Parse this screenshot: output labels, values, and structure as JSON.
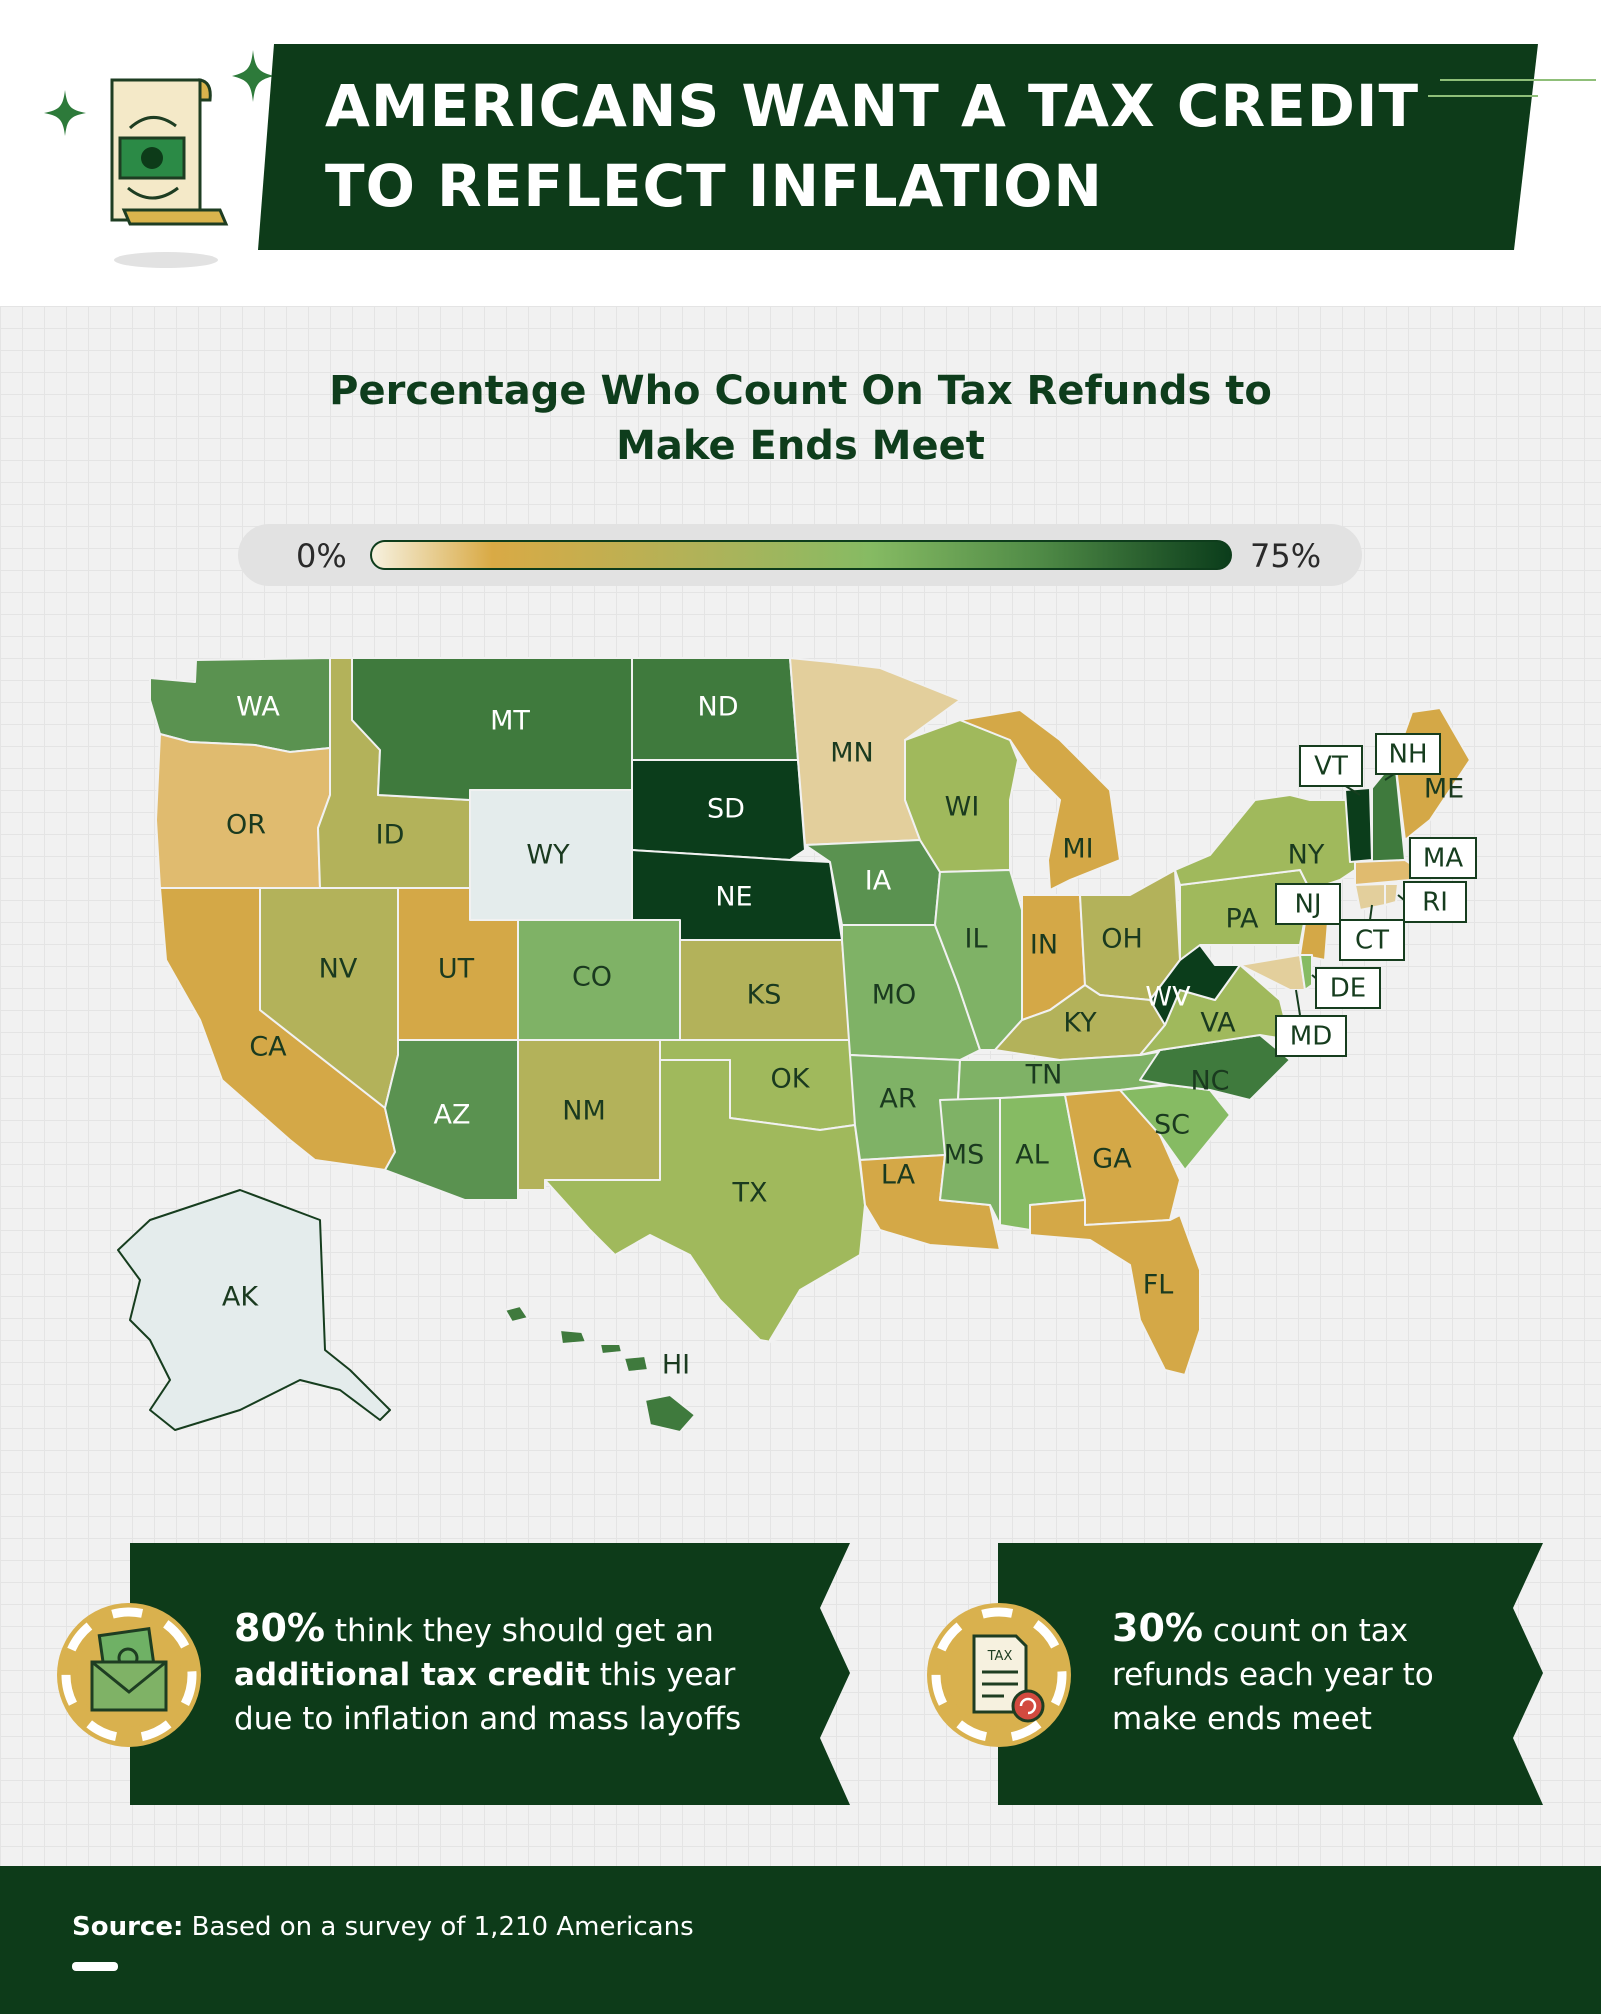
{
  "header": {
    "title_line1": "AMERICANS WANT A TAX CREDIT",
    "title_line2": "TO REFLECT INFLATION"
  },
  "map": {
    "subtitle_line1": "Percentage Who Count On Tax Refunds to",
    "subtitle_line2": "Make Ends Meet",
    "legend_min": "0%",
    "legend_max": "75%",
    "states": {
      "WA": "WA",
      "OR": "OR",
      "CA": "CA",
      "ID": "ID",
      "NV": "NV",
      "MT": "MT",
      "WY": "WY",
      "UT": "UT",
      "AZ": "AZ",
      "CO": "CO",
      "NM": "NM",
      "ND": "ND",
      "SD": "SD",
      "NE": "NE",
      "KS": "KS",
      "OK": "OK",
      "TX": "TX",
      "MN": "MN",
      "IA": "IA",
      "MO": "MO",
      "AR": "AR",
      "LA": "LA",
      "WI": "WI",
      "IL": "IL",
      "MI": "MI",
      "IN": "IN",
      "OH": "OH",
      "KY": "KY",
      "TN": "TN",
      "MS": "MS",
      "AL": "AL",
      "GA": "GA",
      "FL": "FL",
      "SC": "SC",
      "NC": "NC",
      "VA": "VA",
      "WV": "WV",
      "PA": "PA",
      "NY": "NY",
      "ME": "ME",
      "AK": "AK",
      "HI": "HI"
    },
    "tags": {
      "VT": "VT",
      "NH": "NH",
      "MA": "MA",
      "RI": "RI",
      "CT": "CT",
      "NJ": "NJ",
      "DE": "DE",
      "MD": "MD"
    },
    "colors": {
      "darkest": "#0b3d1b",
      "dark": "#3f7a3d",
      "mid_dark": "#5a9250",
      "mid": "#7fb266",
      "light_green": "#a0b95c",
      "olive": "#b3b25a",
      "gold": "#d4a847",
      "light_gold": "#e0bb6f",
      "tan": "#e3cf9c",
      "pale": "#e4ecec"
    }
  },
  "callouts": [
    {
      "stat": "80%",
      "line1_rest": " think they should get an",
      "line2_bold": "additional tax credit",
      "line2_rest": " this year",
      "line3": "due to  inflation and mass layoffs"
    },
    {
      "stat": "30%",
      "line1_rest": " count on tax",
      "line2": "refunds each year to",
      "line3": "make ends meet",
      "icon_label": "TAX"
    }
  ],
  "footer": {
    "source_label": "Source:",
    "source_text": " Based on a survey of 1,210 Americans"
  }
}
